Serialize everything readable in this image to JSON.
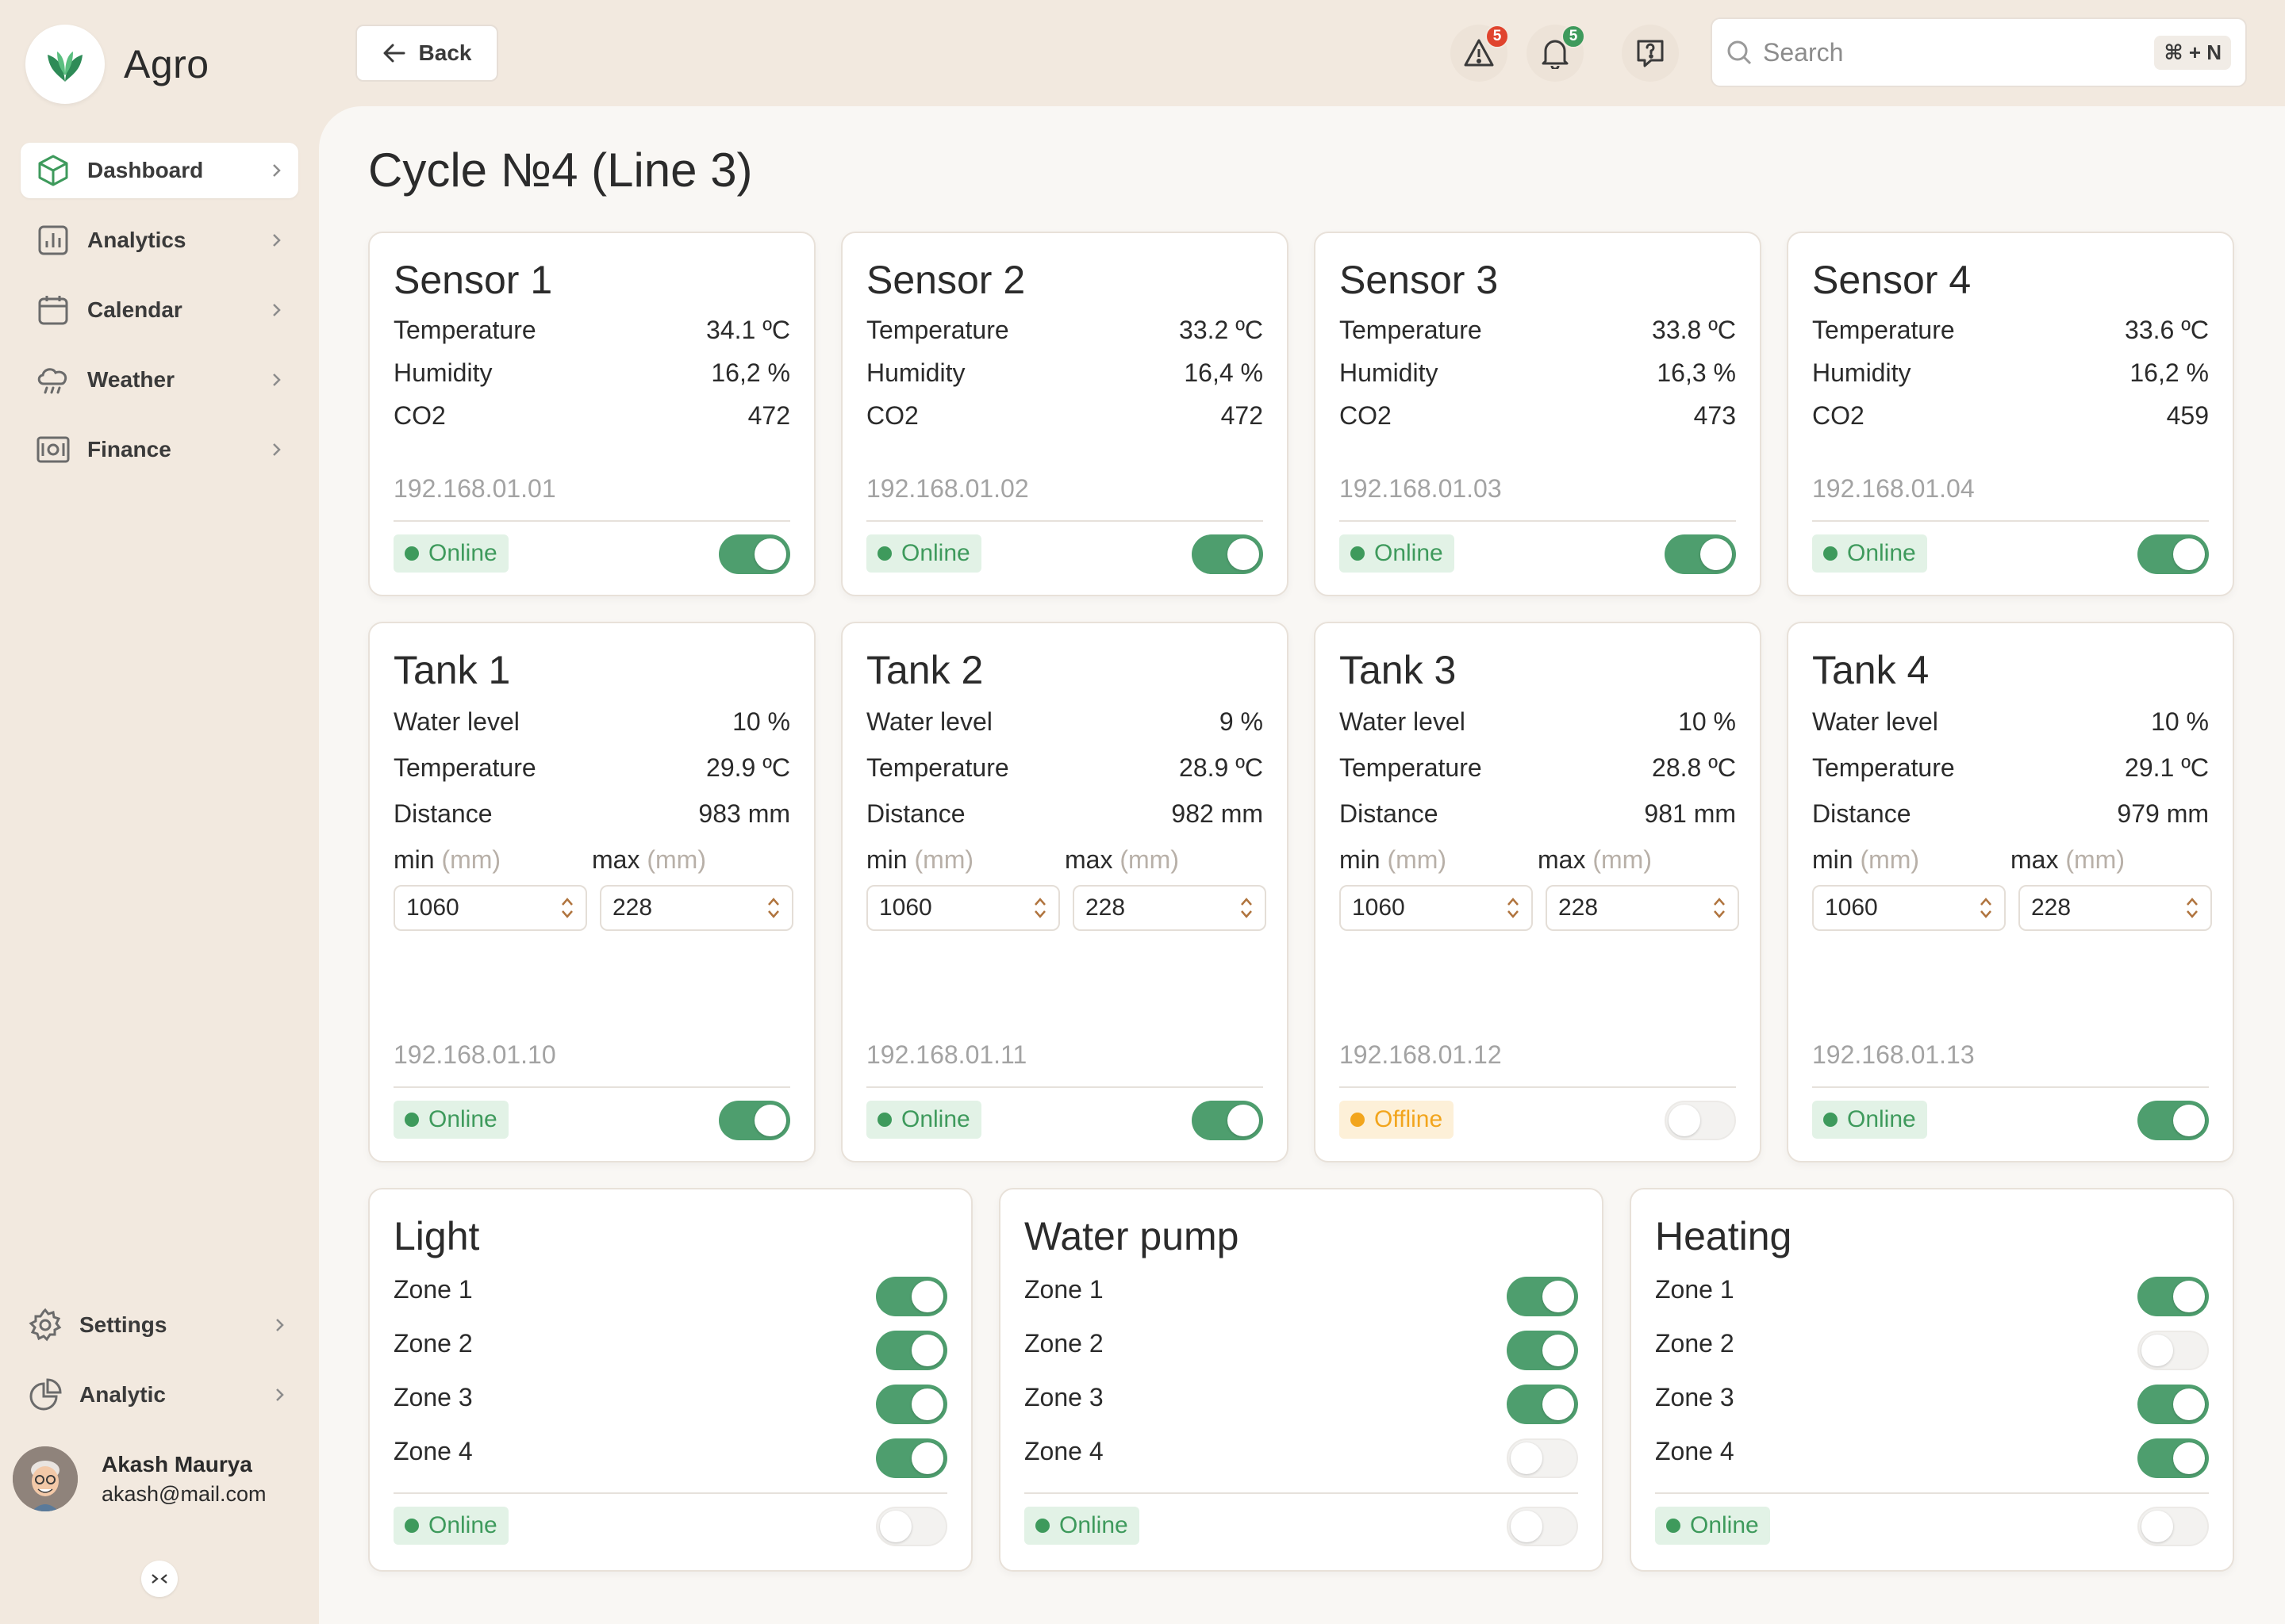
{
  "app": {
    "name": "Agro"
  },
  "sidebar": {
    "items": [
      {
        "label": "Dashboard",
        "icon": "cube-icon",
        "active": true
      },
      {
        "label": "Analytics",
        "icon": "bar-chart-icon",
        "active": false
      },
      {
        "label": "Calendar",
        "icon": "calendar-icon",
        "active": false
      },
      {
        "label": "Weather",
        "icon": "cloud-rain-icon",
        "active": false
      },
      {
        "label": "Finance",
        "icon": "banknote-icon",
        "active": false
      }
    ],
    "bottom_items": [
      {
        "label": "Settings",
        "icon": "gear-icon"
      },
      {
        "label": "Analytic",
        "icon": "pie-chart-icon"
      }
    ],
    "user": {
      "name": "Akash Maurya",
      "email": "akash@mail.com"
    }
  },
  "header": {
    "back_label": "Back",
    "alerts_count": "5",
    "notifications_count": "5",
    "search_placeholder": "Search",
    "search_shortcut": "⌘ + N"
  },
  "page": {
    "title": "Cycle №4 (Line 3)"
  },
  "sensors": [
    {
      "title": "Sensor 1",
      "rows": [
        {
          "label": "Temperature",
          "value": "34.1 ºC"
        },
        {
          "label": "Humidity",
          "value": "16,2 %"
        },
        {
          "label": "CO2",
          "value": "472"
        }
      ],
      "ip": "192.168.01.01",
      "status": "Online",
      "enabled": true
    },
    {
      "title": "Sensor 2",
      "rows": [
        {
          "label": "Temperature",
          "value": "33.2 ºC"
        },
        {
          "label": "Humidity",
          "value": "16,4 %"
        },
        {
          "label": "CO2",
          "value": "472"
        }
      ],
      "ip": "192.168.01.02",
      "status": "Online",
      "enabled": true
    },
    {
      "title": "Sensor 3",
      "rows": [
        {
          "label": "Temperature",
          "value": "33.8 ºC"
        },
        {
          "label": "Humidity",
          "value": "16,3 %"
        },
        {
          "label": "CO2",
          "value": "473"
        }
      ],
      "ip": "192.168.01.03",
      "status": "Online",
      "enabled": true
    },
    {
      "title": "Sensor 4",
      "rows": [
        {
          "label": "Temperature",
          "value": "33.6 ºC"
        },
        {
          "label": "Humidity",
          "value": "16,2 %"
        },
        {
          "label": "CO2",
          "value": "459"
        }
      ],
      "ip": "192.168.01.04",
      "status": "Online",
      "enabled": true
    }
  ],
  "tanks": [
    {
      "title": "Tank 1",
      "rows": [
        {
          "label": "Water level",
          "value": "10 %"
        },
        {
          "label": "Temperature",
          "value": "29.9 ºC"
        },
        {
          "label": "Distance",
          "value": "983 mm"
        }
      ],
      "min_label": "min",
      "max_label": "max",
      "unit": "(mm)",
      "min_value": "1060",
      "max_value": "228",
      "ip": "192.168.01.10",
      "status": "Online",
      "enabled": true
    },
    {
      "title": "Tank 2",
      "rows": [
        {
          "label": "Water level",
          "value": "9 %"
        },
        {
          "label": "Temperature",
          "value": "28.9 ºC"
        },
        {
          "label": "Distance",
          "value": "982 mm"
        }
      ],
      "min_label": "min",
      "max_label": "max",
      "unit": "(mm)",
      "min_value": "1060",
      "max_value": "228",
      "ip": "192.168.01.11",
      "status": "Online",
      "enabled": true
    },
    {
      "title": "Tank 3",
      "rows": [
        {
          "label": "Water level",
          "value": "10 %"
        },
        {
          "label": "Temperature",
          "value": "28.8 ºC"
        },
        {
          "label": "Distance",
          "value": "981 mm"
        }
      ],
      "min_label": "min",
      "max_label": "max",
      "unit": "(mm)",
      "min_value": "1060",
      "max_value": "228",
      "ip": "192.168.01.12",
      "status": "Offline",
      "enabled": false
    },
    {
      "title": "Tank 4",
      "rows": [
        {
          "label": "Water level",
          "value": "10 %"
        },
        {
          "label": "Temperature",
          "value": "29.1 ºC"
        },
        {
          "label": "Distance",
          "value": "979 mm"
        }
      ],
      "min_label": "min",
      "max_label": "max",
      "unit": "(mm)",
      "min_value": "1060",
      "max_value": "228",
      "ip": "192.168.01.13",
      "status": "Online",
      "enabled": true
    }
  ],
  "controls": [
    {
      "title": "Light",
      "zones": [
        {
          "label": "Zone 1",
          "on": true
        },
        {
          "label": "Zone 2",
          "on": true
        },
        {
          "label": "Zone 3",
          "on": true
        },
        {
          "label": "Zone 4",
          "on": true
        }
      ],
      "status": "Online",
      "enabled": false
    },
    {
      "title": "Water pump",
      "zones": [
        {
          "label": "Zone 1",
          "on": true
        },
        {
          "label": "Zone 2",
          "on": true
        },
        {
          "label": "Zone 3",
          "on": true
        },
        {
          "label": "Zone 4",
          "on": false
        }
      ],
      "status": "Online",
      "enabled": false
    },
    {
      "title": "Heating",
      "zones": [
        {
          "label": "Zone 1",
          "on": true
        },
        {
          "label": "Zone 2",
          "on": false
        },
        {
          "label": "Zone 3",
          "on": true
        },
        {
          "label": "Zone 4",
          "on": true
        }
      ],
      "status": "Online",
      "enabled": false
    }
  ],
  "colors": {
    "accent": "#4E9E6E",
    "online": "#3E9A5C",
    "offline": "#F2A51D",
    "alert_badge": "#E0442E",
    "background": "#F2E9DF"
  }
}
